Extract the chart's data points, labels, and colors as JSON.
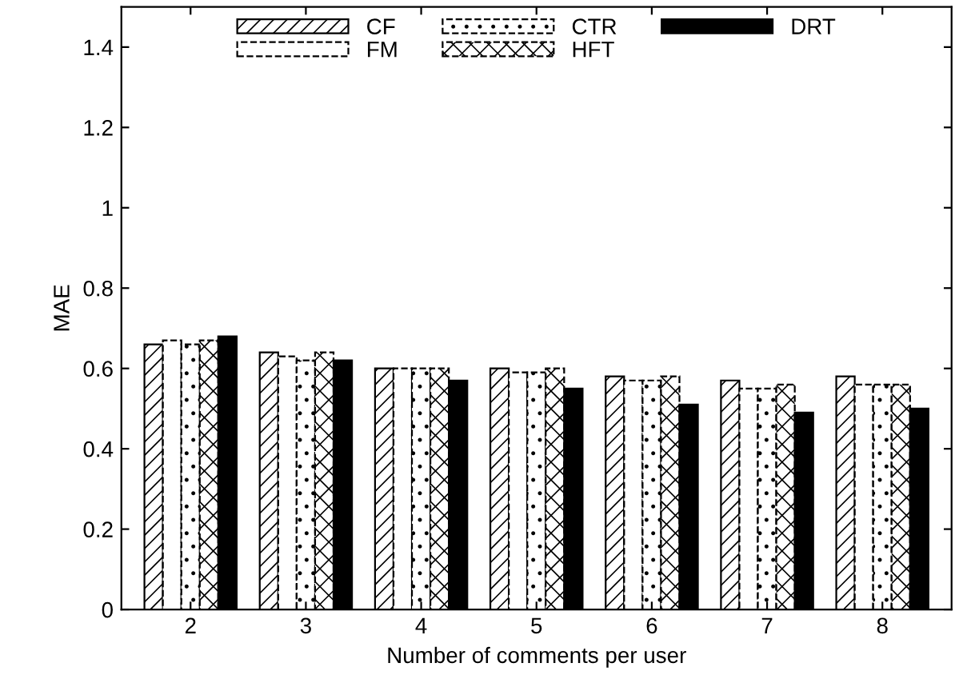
{
  "chart_data": {
    "type": "bar",
    "xlabel": "Number of comments per user",
    "ylabel": "MAE",
    "categories": [
      "2",
      "3",
      "4",
      "5",
      "6",
      "7",
      "8"
    ],
    "series": [
      {
        "name": "CF",
        "color": "#000000",
        "values": [
          0.66,
          0.64,
          0.6,
          0.6,
          0.58,
          0.57,
          0.58
        ]
      },
      {
        "name": "FM",
        "color": "#000000",
        "values": [
          0.67,
          0.63,
          0.6,
          0.59,
          0.57,
          0.55,
          0.56
        ]
      },
      {
        "name": "CTR",
        "color": "#000000",
        "values": [
          0.66,
          0.62,
          0.6,
          0.59,
          0.57,
          0.55,
          0.56
        ]
      },
      {
        "name": "HFT",
        "color": "#000000",
        "values": [
          0.67,
          0.64,
          0.6,
          0.6,
          0.58,
          0.56,
          0.56
        ]
      },
      {
        "name": "DRT",
        "color": "#000000",
        "values": [
          0.68,
          0.62,
          0.57,
          0.55,
          0.51,
          0.49,
          0.5
        ]
      }
    ],
    "ylim": [
      0,
      1.5
    ],
    "yticks": [
      0,
      0.2,
      0.4,
      0.6,
      0.8,
      1,
      1.2,
      1.4
    ],
    "grid": false,
    "legend": "top"
  }
}
